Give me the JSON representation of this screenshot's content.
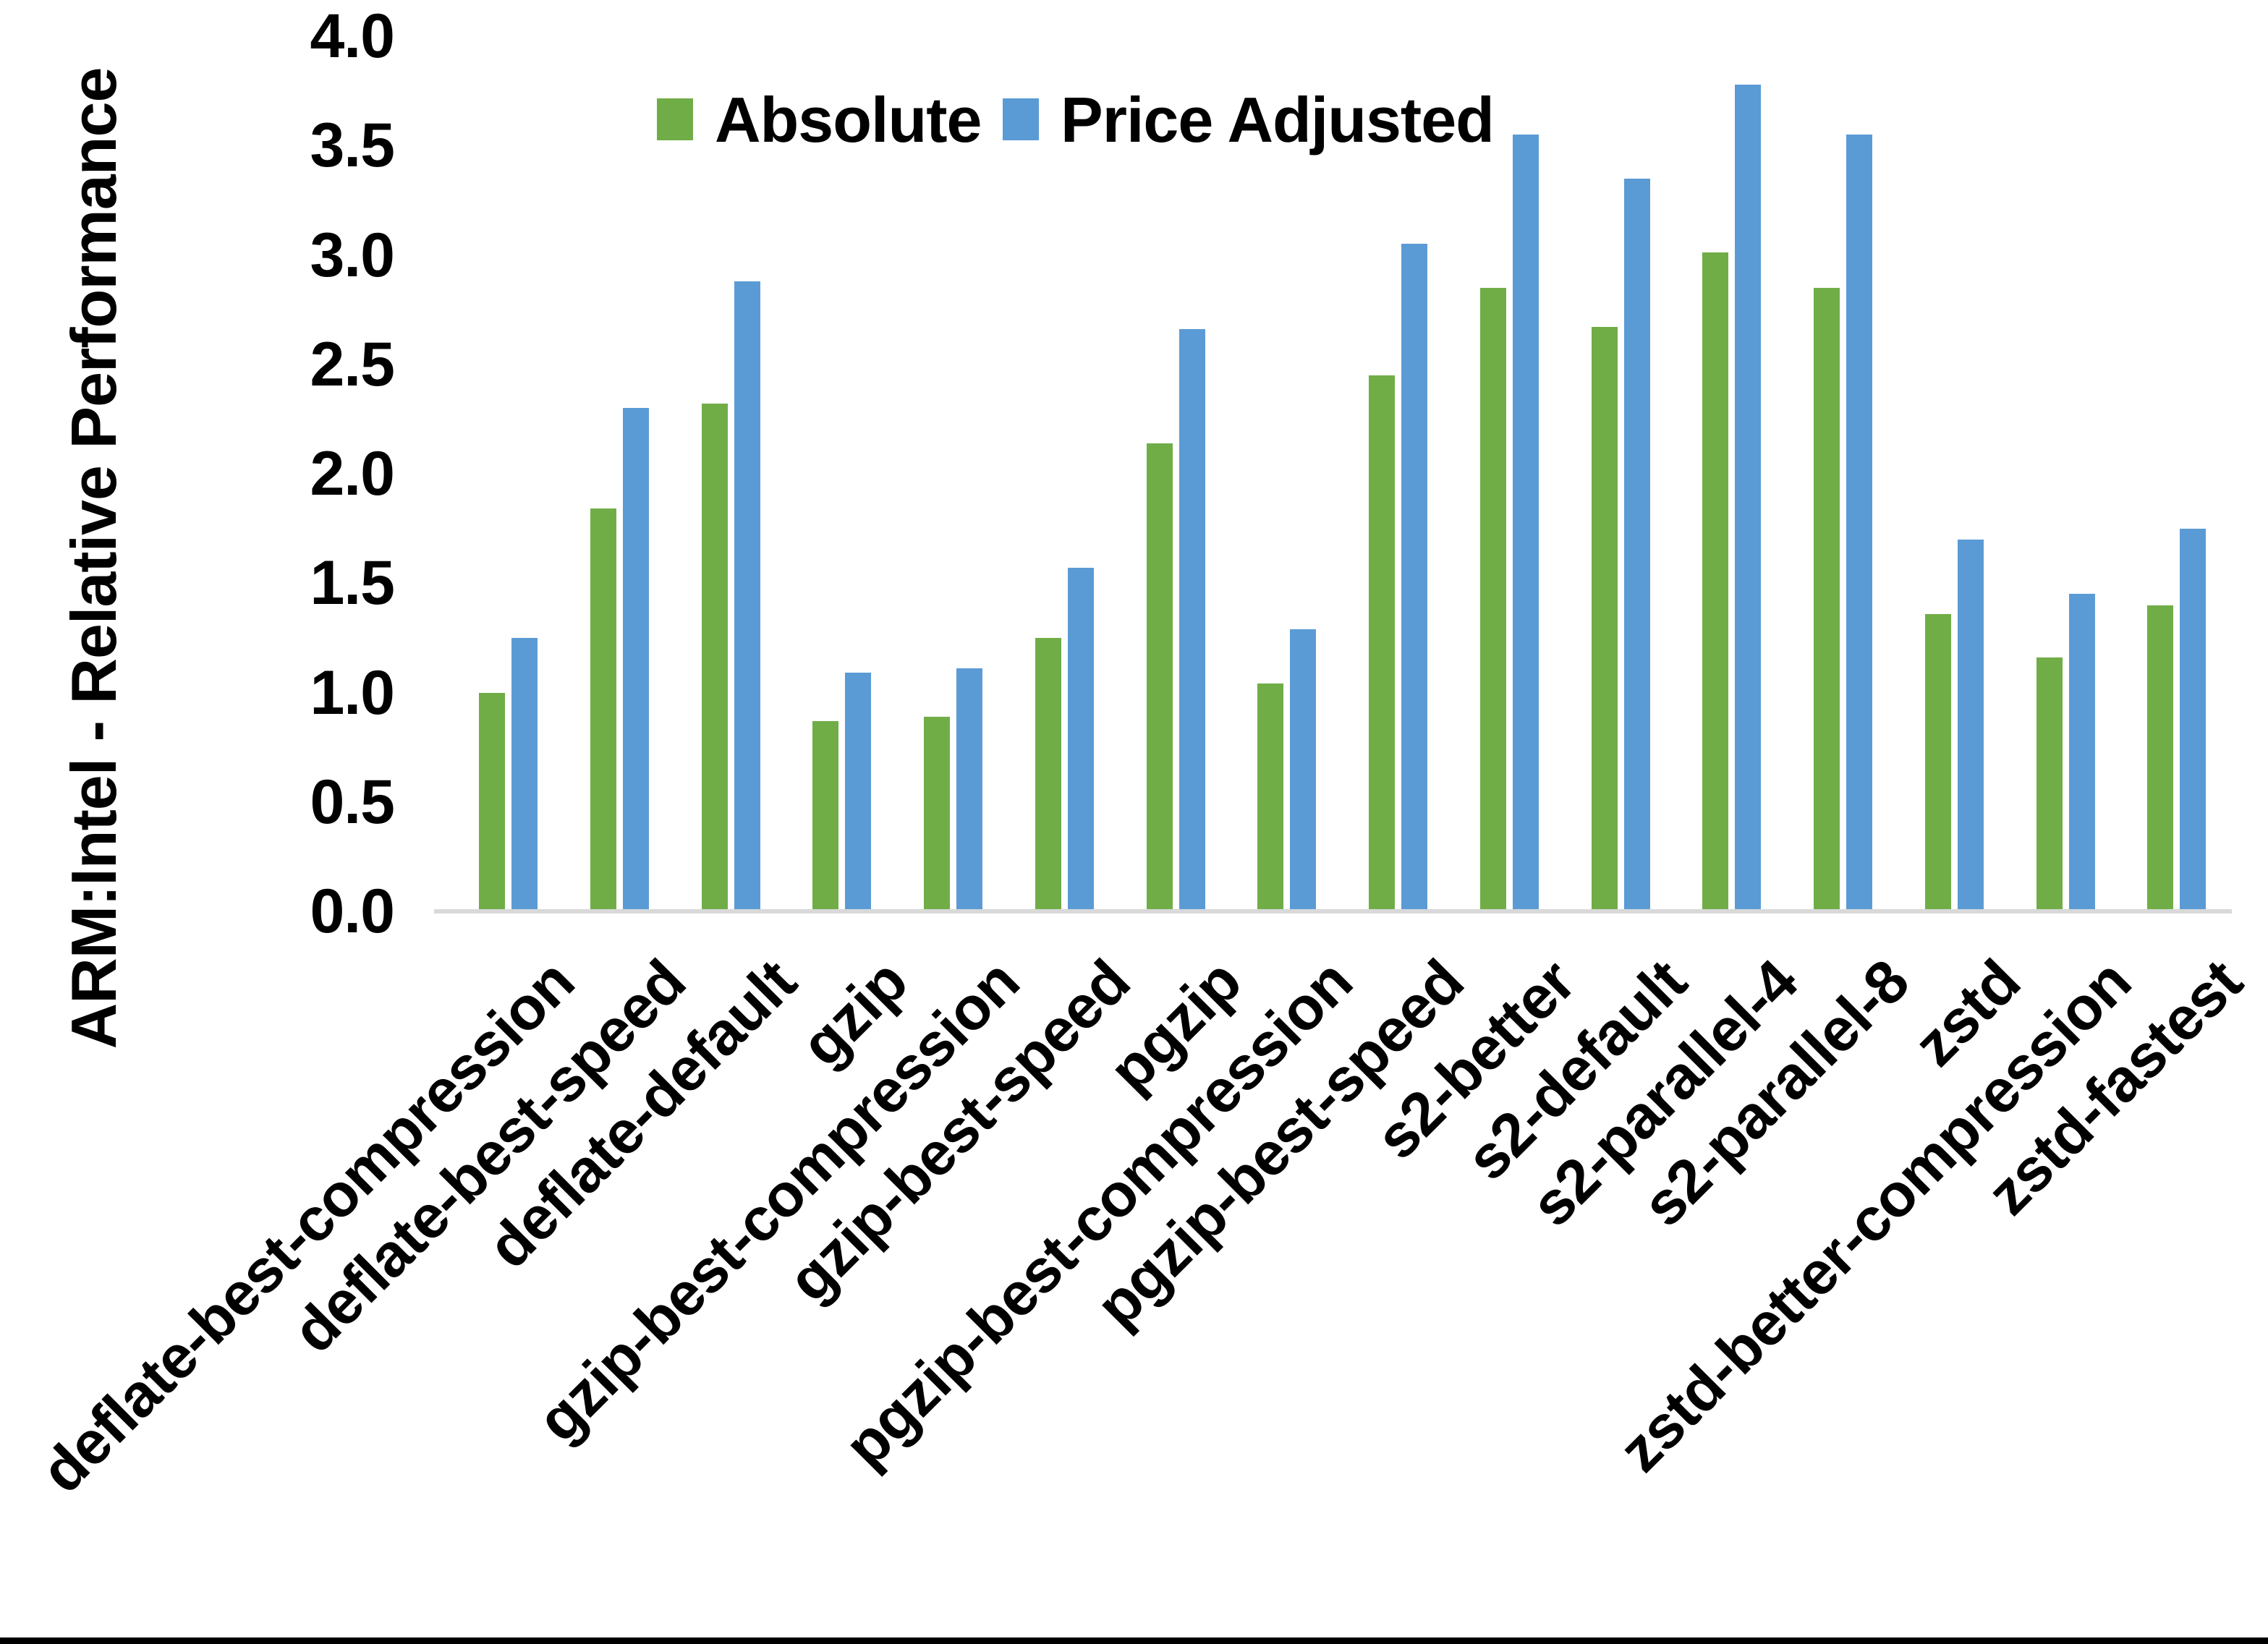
{
  "axis_title": "ARM:Intel - Relative Performance",
  "legend": {
    "absolute_label": "Absolute",
    "price_adjusted_label": "Price Adjusted"
  },
  "colors": {
    "absolute": "#70AD47",
    "price_adjusted": "#5B9BD5",
    "axis_line": "#D9D9D9",
    "text": "#000000",
    "bottom_bar": "#000000"
  },
  "chart_data": {
    "type": "bar",
    "title": "",
    "xlabel": "",
    "ylabel": "ARM:Intel - Relative Performance",
    "ylim": [
      0.0,
      4.0
    ],
    "ytick_step": 0.5,
    "ytick_labels": [
      "0.0",
      "0.5",
      "1.0",
      "1.5",
      "2.0",
      "2.5",
      "3.0",
      "3.5",
      "4.0"
    ],
    "grid": false,
    "legend_position": "top-center",
    "categories": [
      "deflate-best-compression",
      "deflate-best-speed",
      "deflate-default",
      "gzip",
      "gzip-best-compression",
      "gzip-best-speed",
      "pgzip",
      "pgzip-best-compression",
      "pgzip-best-speed",
      "s2-better",
      "s2-default",
      "s2-parallel-4",
      "s2-parallel-8",
      "zstd",
      "zstd-better-compression",
      "zstd-fastest"
    ],
    "series": [
      {
        "name": "Absolute",
        "color": "#70AD47",
        "values": [
          1.0,
          1.84,
          2.32,
          0.87,
          0.89,
          1.25,
          2.14,
          1.04,
          2.45,
          2.85,
          2.67,
          3.01,
          2.85,
          1.36,
          1.16,
          1.4
        ]
      },
      {
        "name": "Price Adjusted",
        "color": "#5B9BD5",
        "values": [
          1.25,
          2.3,
          2.88,
          1.09,
          1.11,
          1.57,
          2.66,
          1.29,
          3.05,
          3.55,
          3.35,
          3.78,
          3.55,
          1.7,
          1.45,
          1.75
        ]
      }
    ]
  }
}
